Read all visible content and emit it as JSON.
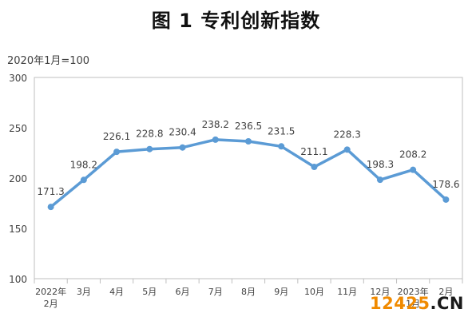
{
  "title": "图 1  专利创新指数",
  "unit_note": "2020年1月=100",
  "watermark": {
    "digits": "12425",
    "suffix": ".CN"
  },
  "colors": {
    "line": "#5b9bd5",
    "axis": "#bfbfbf",
    "text": "#404040"
  },
  "chart_data": {
    "type": "line",
    "title": "图 1  专利创新指数",
    "xlabel": "",
    "ylabel": "",
    "ylim": [
      100,
      300
    ],
    "yticks": [
      "100",
      "150",
      "200",
      "250",
      "300"
    ],
    "grid": false,
    "categories": [
      [
        "2022年",
        "2月"
      ],
      [
        "3月"
      ],
      [
        "4月"
      ],
      [
        "5月"
      ],
      [
        "6月"
      ],
      [
        "7月"
      ],
      [
        "8月"
      ],
      [
        "9月"
      ],
      [
        "10月"
      ],
      [
        "11月"
      ],
      [
        "12月"
      ],
      [
        "2023年",
        "1月"
      ],
      [
        "2月"
      ]
    ],
    "series": [
      {
        "values": [
          171.3,
          198.2,
          226.1,
          228.8,
          230.4,
          238.2,
          236.5,
          231.5,
          211.1,
          228.3,
          198.3,
          208.2,
          178.6
        ]
      }
    ],
    "data_labels": [
      "171.3",
      "198.2",
      "226.1",
      "228.8",
      "230.4",
      "238.2",
      "236.5",
      "231.5",
      "211.1",
      "228.3",
      "198.3",
      "208.2",
      "178.6"
    ]
  }
}
